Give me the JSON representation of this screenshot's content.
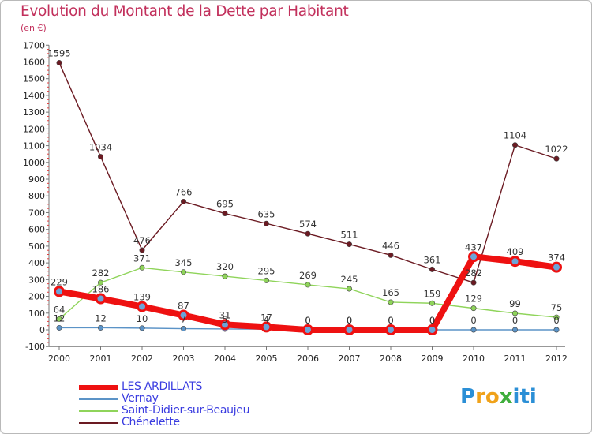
{
  "header": {
    "title": "Evolution du Montant de la Dette par Habitant",
    "unit": "(en €)"
  },
  "logo": {
    "letters": [
      "P",
      "r",
      "o",
      "x",
      "i",
      "t",
      "i"
    ],
    "colors": [
      "#2b8fd6",
      "#f0a21a",
      "#f0a21a",
      "#3fae3c",
      "#2b8fd6",
      "#2b8fd6",
      "#2b8fd6"
    ]
  },
  "chart_data": {
    "type": "line",
    "title": "Evolution du Montant de la Dette par Habitant",
    "ylabel": "(en €)",
    "xlabel": "",
    "ylim": [
      -100,
      1700
    ],
    "yticks": [
      -100,
      0,
      100,
      200,
      300,
      400,
      500,
      600,
      700,
      800,
      900,
      1000,
      1100,
      1200,
      1300,
      1400,
      1500,
      1600,
      1700
    ],
    "categories": [
      "2000",
      "2001",
      "2002",
      "2003",
      "2004",
      "2005",
      "2006",
      "2007",
      "2008",
      "2009",
      "2010",
      "2011",
      "2012"
    ],
    "series": [
      {
        "name": "Chénelette",
        "color": "#6b1a22",
        "values": [
          1595,
          1034,
          476,
          766,
          695,
          635,
          574,
          511,
          446,
          361,
          282,
          1104,
          1022
        ]
      },
      {
        "name": "Saint-Didier-sur-Beaujeu",
        "color": "#8fd45a",
        "values": [
          64,
          282,
          371,
          345,
          320,
          295,
          269,
          245,
          165,
          159,
          129,
          99,
          75
        ]
      },
      {
        "name": "Vernay",
        "color": "#5b93c7",
        "values": [
          12,
          12,
          10,
          7,
          5,
          4,
          0,
          0,
          0,
          0,
          0,
          0,
          0
        ]
      },
      {
        "name": "LES ARDILLATS",
        "color": "#ee1111",
        "values": [
          229,
          186,
          139,
          87,
          31,
          17,
          0,
          0,
          0,
          0,
          437,
          409,
          374
        ]
      }
    ],
    "legend": [
      "LES ARDILLATS",
      "Vernay",
      "Saint-Didier-sur-Beaujeu",
      "Chénelette"
    ],
    "grid": false,
    "legend_position": "bottom-left"
  }
}
